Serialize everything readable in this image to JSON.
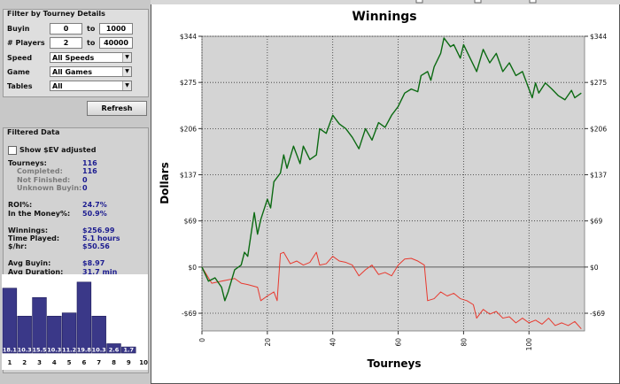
{
  "filter": {
    "title": "Filter by Tourney Details",
    "buyin": {
      "label": "Buyin",
      "min": 0,
      "sep": "to",
      "max": 1000
    },
    "players": {
      "label": "# Players",
      "min": 2,
      "sep": "to",
      "max": 40000
    },
    "selects": [
      {
        "label": "Speed",
        "value": "All Speeds"
      },
      {
        "label": "Game",
        "value": "All Games"
      },
      {
        "label": "Tables",
        "value": "All"
      }
    ],
    "button": "Refresh"
  },
  "filtered_data": {
    "title": "Filtered Data",
    "checkbox": "Show $EV adjusted",
    "groups": [
      [
        {
          "label": "Tourneys:",
          "value": 116,
          "sub": [
            {
              "label": "Completed:",
              "value": 116
            },
            {
              "label": "Not Finished:",
              "value": 0
            },
            {
              "label": "Unknown Buyin:",
              "value": 0
            }
          ]
        }
      ],
      [
        {
          "label": "ROI%:",
          "value": "24.7%"
        },
        {
          "label": "In the Money%:",
          "value": "50.9%"
        }
      ],
      [
        {
          "label": "Winnings:",
          "value": "$256.99"
        },
        {
          "label": "Time Played:",
          "value": "5.1 hours"
        },
        {
          "label": "$/hr:",
          "value": "$50.56"
        }
      ],
      [
        {
          "label": "Avg Buyin:",
          "value": "$8.97"
        },
        {
          "label": "Avg Duration:",
          "value": "31.7 min"
        }
      ]
    ]
  },
  "histogram": {
    "type": "bar",
    "categories": [
      "1",
      "2",
      "3",
      "4",
      "5",
      "6",
      "7",
      "8",
      "9",
      "10"
    ],
    "values": [
      18.1,
      10.3,
      15.5,
      10.3,
      11.2,
      19.8,
      10.3,
      2.6,
      1.7,
      null
    ],
    "color": "#3a3888"
  },
  "chart_data": {
    "type": "line",
    "title": "Winnings",
    "x_label": "Tourneys",
    "y_label": "Dollars",
    "xlim": [
      0,
      117
    ],
    "xticks": [
      0,
      20,
      40,
      60,
      80,
      100
    ],
    "ylim": [
      -95,
      343.5
    ],
    "yticks": [
      {
        "value": -68.7,
        "label": "-$69"
      },
      {
        "value": 0,
        "label": "$0"
      },
      {
        "value": 68.7,
        "label": "$69"
      },
      {
        "value": 137.4,
        "label": "$137"
      },
      {
        "value": 206.1,
        "label": "$206"
      },
      {
        "value": 274.8,
        "label": "$275"
      },
      {
        "value": 343.5,
        "label": "$344"
      }
    ],
    "grid": true,
    "series": [
      {
        "color": "#0b6a12",
        "x": [
          0,
          2,
          4,
          6,
          7,
          8,
          10,
          12,
          13,
          14,
          16,
          17,
          18,
          20,
          21,
          22,
          24,
          25,
          26,
          28,
          30,
          31,
          33,
          35,
          36,
          38,
          40,
          42,
          44,
          46,
          48,
          50,
          52,
          54,
          56,
          58,
          60,
          62,
          64,
          66,
          67,
          69,
          70,
          71,
          73,
          74,
          76,
          77,
          79,
          80,
          82,
          84,
          86,
          88,
          90,
          92,
          94,
          96,
          98,
          100,
          101,
          102,
          103,
          105,
          107,
          109,
          111,
          113,
          114,
          116
        ],
        "values": [
          0,
          -21,
          -16,
          -30,
          -50,
          -37,
          -4,
          3,
          22,
          16,
          81,
          49,
          71,
          101,
          88,
          127,
          140,
          167,
          147,
          180,
          154,
          180,
          160,
          167,
          206,
          199,
          226,
          213,
          206,
          193,
          176,
          206,
          189,
          215,
          208,
          226,
          239,
          259,
          265,
          261,
          285,
          291,
          278,
          298,
          318,
          341,
          328,
          331,
          311,
          331,
          311,
          291,
          324,
          304,
          318,
          291,
          304,
          285,
          291,
          265,
          252,
          274,
          259,
          274,
          265,
          255,
          249,
          263,
          252,
          259
        ]
      },
      {
        "color": "#e8392e",
        "x": [
          0,
          3,
          6,
          10,
          12,
          14,
          17,
          18,
          20,
          22,
          23,
          24,
          25,
          27,
          29,
          31,
          33,
          35,
          36,
          38,
          40,
          42,
          44,
          46,
          48,
          50,
          52,
          54,
          56,
          58,
          60,
          62,
          64,
          66,
          68,
          69,
          71,
          73,
          75,
          77,
          79,
          81,
          83,
          84,
          86,
          88,
          90,
          92,
          94,
          96,
          98,
          100,
          102,
          104,
          106,
          108,
          110,
          112,
          114,
          116
        ],
        "values": [
          0,
          -24,
          -21,
          -17,
          -24,
          -26,
          -30,
          -50,
          -43,
          -37,
          -50,
          20,
          22,
          5,
          9,
          3,
          7,
          22,
          3,
          5,
          16,
          9,
          7,
          3,
          -13,
          -4,
          3,
          -11,
          -8,
          -13,
          3,
          12,
          13,
          9,
          3,
          -50,
          -47,
          -37,
          -43,
          -39,
          -47,
          -50,
          -56,
          -76,
          -63,
          -70,
          -66,
          -76,
          -74,
          -83,
          -76,
          -83,
          -79,
          -85,
          -76,
          -87,
          -83,
          -87,
          -81,
          -92
        ]
      }
    ]
  }
}
